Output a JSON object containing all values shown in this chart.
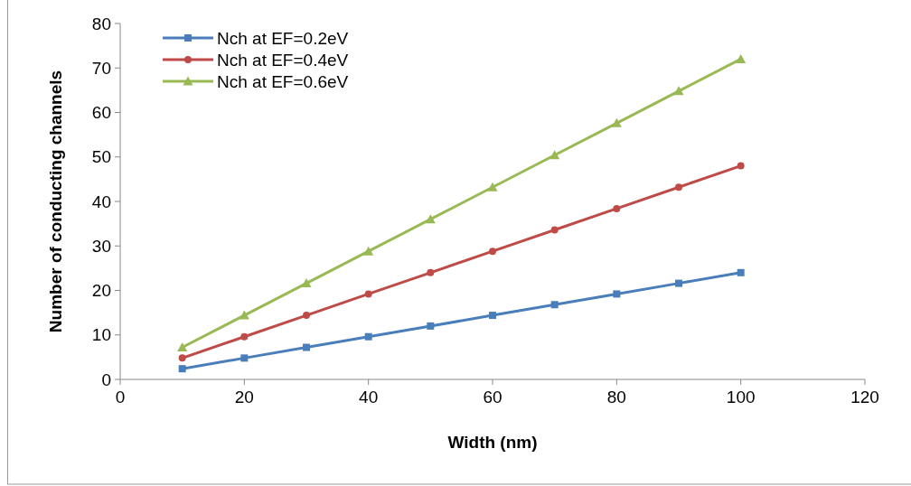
{
  "chart_data": {
    "type": "line",
    "xlabel": "Width (nm)",
    "ylabel": "Number of conducting channels",
    "x": [
      10,
      20,
      30,
      40,
      50,
      60,
      70,
      80,
      90,
      100
    ],
    "series": [
      {
        "name": "Nch at EF=0.2eV",
        "color": "#4a7ebb",
        "marker": "square",
        "values": [
          2.4,
          4.8,
          7.2,
          9.6,
          12,
          14.4,
          16.8,
          19.2,
          21.6,
          24
        ]
      },
      {
        "name": "Nch at EF=0.4eV",
        "color": "#be4b48",
        "marker": "circle",
        "values": [
          4.8,
          9.6,
          14.4,
          19.2,
          24,
          28.8,
          33.6,
          38.4,
          43.2,
          48
        ]
      },
      {
        "name": "Nch at EF=0.6eV",
        "color": "#98b954",
        "marker": "triangle",
        "values": [
          7.2,
          14.4,
          21.6,
          28.8,
          36,
          43.2,
          50.4,
          57.6,
          64.8,
          72
        ]
      }
    ],
    "xlim": [
      0,
      120
    ],
    "xticks": [
      0,
      20,
      40,
      60,
      80,
      100,
      120
    ],
    "ylim": [
      0,
      80
    ],
    "yticks": [
      0,
      10,
      20,
      30,
      40,
      50,
      60,
      70,
      80
    ],
    "grid": false,
    "legend": "top left",
    "line_style": "solid"
  }
}
